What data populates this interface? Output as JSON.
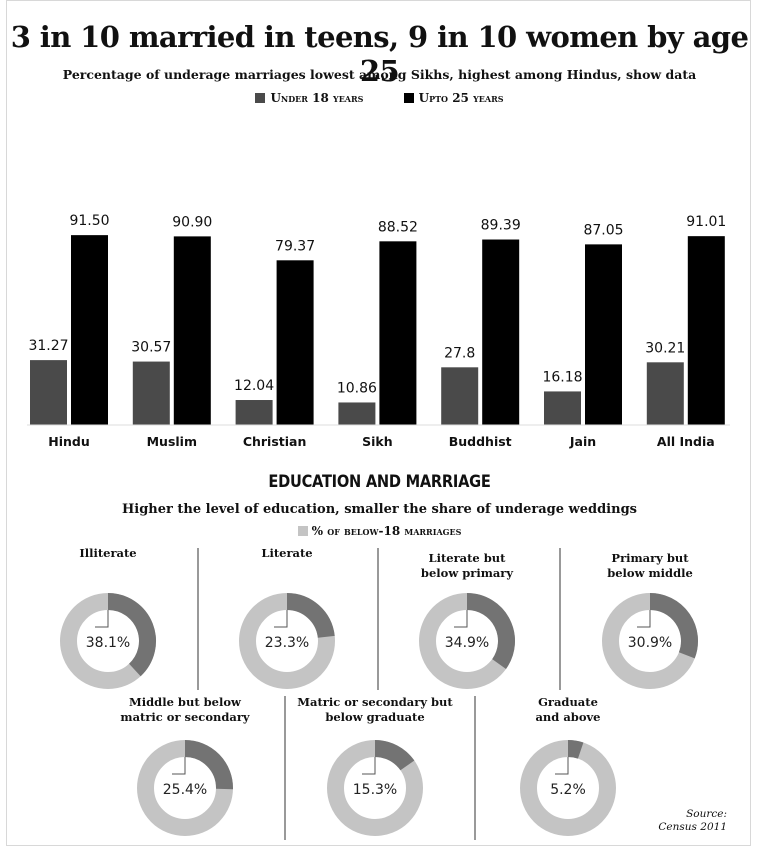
{
  "title": "3 in 10 married in teens, 9 in 10 women by age 25",
  "subtitle": "Percentage of underage marriages lowest among Sikhs, highest among Hindus, show data",
  "legend": {
    "under18": "Under 18 years",
    "upto25": "Upto 25 years"
  },
  "colors": {
    "under18": "#4a4a4a",
    "upto25": "#000000",
    "donut_share": "#737373",
    "donut_rest": "#c4c4c4"
  },
  "chart_data": [
    {
      "type": "bar",
      "title": "3 in 10 married in teens, 9 in 10 women by age 25",
      "subtitle": "Percentage of underage marriages lowest among Sikhs, highest among Hindus, show data",
      "categories": [
        "Hindu",
        "Muslim",
        "Christian",
        "Sikh",
        "Buddhist",
        "Jain",
        "All India"
      ],
      "series": [
        {
          "name": "Under 18 years",
          "values": [
            31.27,
            30.57,
            12.04,
            10.86,
            27.8,
            16.18,
            30.21
          ],
          "labels": [
            "31.27",
            "30.57",
            "12.04",
            "10.86",
            "27.8",
            "16.18",
            "30.21"
          ]
        },
        {
          "name": "Upto 25 years",
          "values": [
            91.5,
            90.9,
            79.37,
            88.52,
            89.39,
            87.05,
            91.01
          ],
          "labels": [
            "91.50",
            "90.90",
            "79.37",
            "88.52",
            "89.39",
            "87.05",
            "91.01"
          ]
        }
      ],
      "ylim": [
        0,
        100
      ],
      "grid": false,
      "legend_position": "top"
    },
    {
      "type": "pie",
      "variant": "donut",
      "title": "Education and marriage",
      "subtitle": "Higher the level of education, smaller the share of underage weddings",
      "legend": "% of below-18 marriages",
      "categories": [
        "Illiterate",
        "Literate",
        "Literate but below primary",
        "Primary but below middle",
        "Middle but below matric or secondary",
        "Matric or secondary but below graduate",
        "Graduate and above"
      ],
      "category_lines": [
        [
          "Illiterate"
        ],
        [
          "Literate"
        ],
        [
          "Literate but",
          "below primary"
        ],
        [
          "Primary but",
          "below middle"
        ],
        [
          "Middle but below",
          "matric or secondary"
        ],
        [
          "Matric or secondary but",
          "below graduate"
        ],
        [
          "Graduate",
          "and above"
        ]
      ],
      "values": [
        38.1,
        23.3,
        34.9,
        30.9,
        25.4,
        15.3,
        5.2
      ],
      "labels": [
        "38.1%",
        "23.3%",
        "34.9%",
        "30.9%",
        "25.4%",
        "15.3%",
        "5.2%"
      ]
    }
  ],
  "section": {
    "heading": "EDUCATION AND MARRIAGE",
    "subheading": "Higher the level of education, smaller the share of underage weddings",
    "legend": "% of below-18 marriages"
  },
  "source": {
    "line1": "Source:",
    "line2": "Census 2011"
  }
}
